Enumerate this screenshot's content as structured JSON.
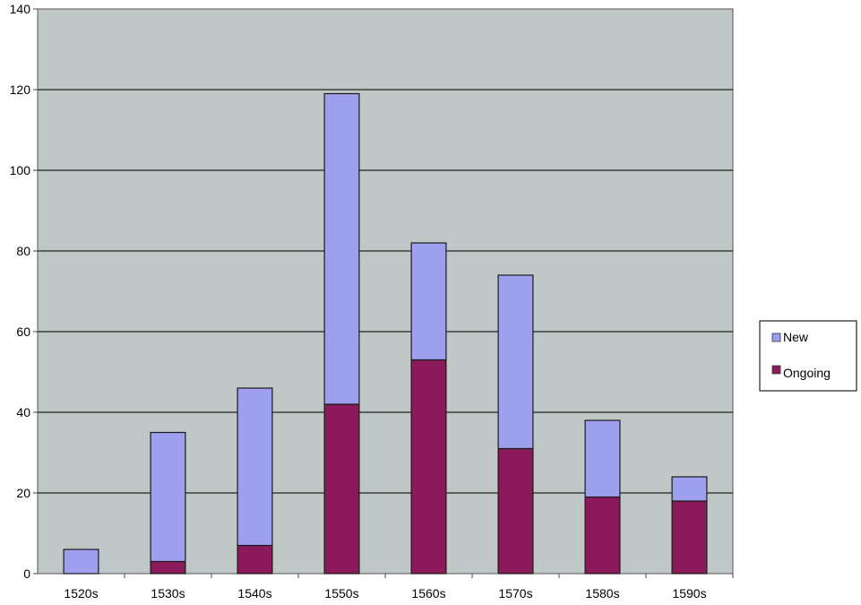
{
  "chart_data": {
    "type": "bar",
    "stacked": true,
    "categories": [
      "1520s",
      "1530s",
      "1540s",
      "1550s",
      "1560s",
      "1570s",
      "1580s",
      "1590s"
    ],
    "series": [
      {
        "name": "Ongoing",
        "color": "#8b1a5c",
        "values": [
          0,
          3,
          7,
          42,
          53,
          31,
          19,
          18
        ]
      },
      {
        "name": "New",
        "color": "#9f9ff0",
        "values": [
          6,
          32,
          39,
          77,
          29,
          43,
          19,
          6
        ]
      }
    ],
    "legend_order": [
      "New",
      "Ongoing"
    ],
    "ylim": [
      0,
      140
    ],
    "yticks": [
      0,
      20,
      40,
      60,
      80,
      100,
      120,
      140
    ],
    "grid": true,
    "legend": "right",
    "plot_background": "#bfc8c6"
  }
}
